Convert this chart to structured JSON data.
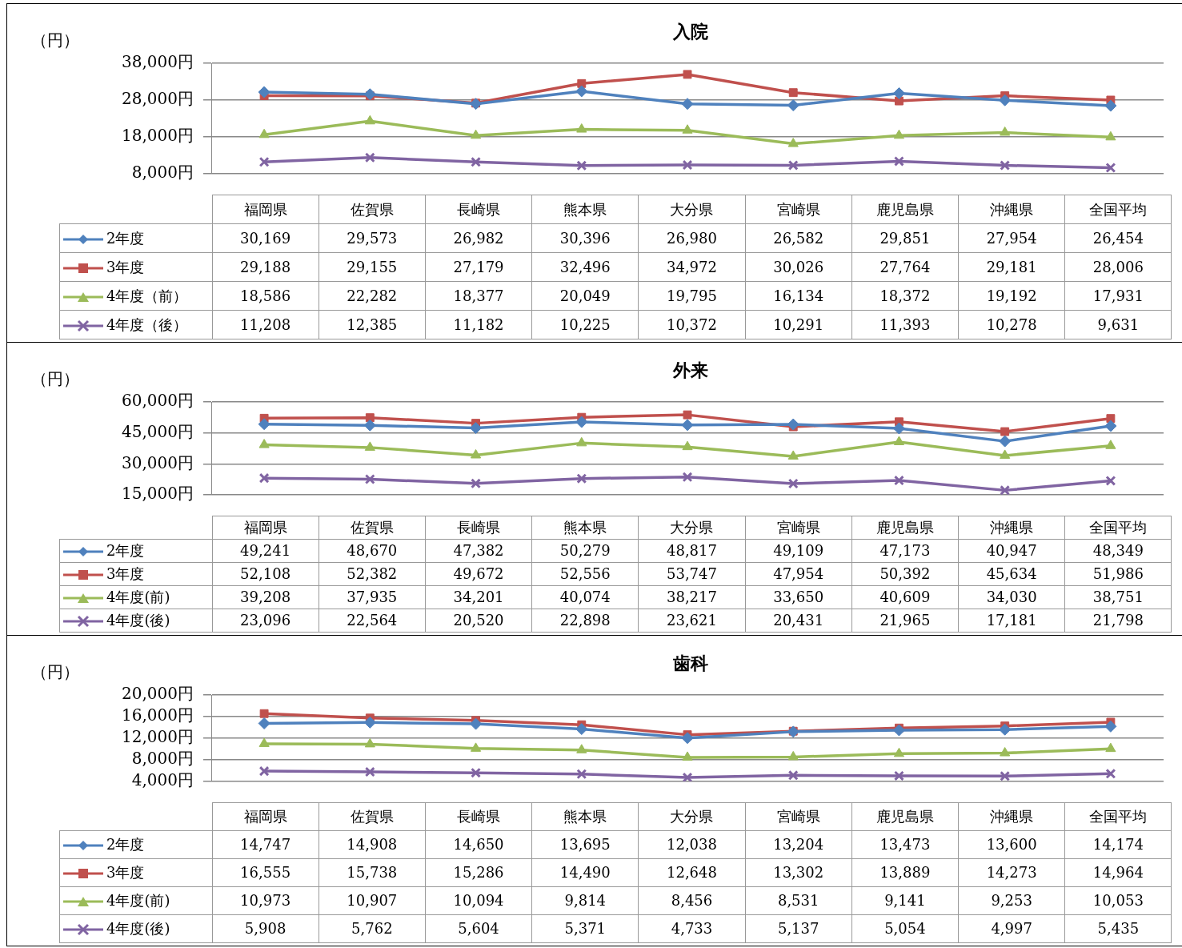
{
  "chart_data": [
    {
      "type": "line",
      "title": "入院",
      "ylabel": "（円）",
      "categories": [
        "福岡県",
        "佐賀県",
        "長崎県",
        "熊本県",
        "大分県",
        "宮崎県",
        "鹿児島県",
        "沖縄県",
        "全国平均"
      ],
      "series": [
        {
          "name": "2年度",
          "color": "#4f81bd",
          "marker": "diamond",
          "values": [
            30169,
            29573,
            26982,
            30396,
            26980,
            26582,
            29851,
            27954,
            26454
          ],
          "value_labels": [
            "30,169",
            "29,573",
            "26,982",
            "30,396",
            "26,980",
            "26,582",
            "29,851",
            "27,954",
            "26,454"
          ]
        },
        {
          "name": "3年度",
          "color": "#c0504d",
          "marker": "square",
          "values": [
            29188,
            29155,
            27179,
            32496,
            34972,
            30026,
            27764,
            29181,
            28006
          ],
          "value_labels": [
            "29,188",
            "29,155",
            "27,179",
            "32,496",
            "34,972",
            "30,026",
            "27,764",
            "29,181",
            "28,006"
          ]
        },
        {
          "name": "4年度（前）",
          "color": "#9bbb59",
          "marker": "triangle",
          "values": [
            18586,
            22282,
            18377,
            20049,
            19795,
            16134,
            18372,
            19192,
            17931
          ],
          "value_labels": [
            "18,586",
            "22,282",
            "18,377",
            "20,049",
            "19,795",
            "16,134",
            "18,372",
            "19,192",
            "17,931"
          ]
        },
        {
          "name": "4年度（後）",
          "color": "#8064a2",
          "marker": "cross",
          "values": [
            11208,
            12385,
            11182,
            10225,
            10372,
            10291,
            11393,
            10278,
            9631
          ],
          "value_labels": [
            "11,208",
            "12,385",
            "11,182",
            "10,225",
            "10,372",
            "10,291",
            "11,393",
            "10,278",
            "9,631"
          ]
        }
      ],
      "ylim": [
        8000,
        38000
      ],
      "yticks": [
        {
          "value": 8000,
          "label": "8,000円"
        },
        {
          "value": 18000,
          "label": "18,000円"
        },
        {
          "value": 28000,
          "label": "28,000円"
        },
        {
          "value": 38000,
          "label": "38,000円"
        }
      ],
      "grid": "y",
      "legend": "bottom",
      "line_style": "solid"
    },
    {
      "type": "line",
      "title": "外来",
      "ylabel": "（円）",
      "categories": [
        "福岡県",
        "佐賀県",
        "長崎県",
        "熊本県",
        "大分県",
        "宮崎県",
        "鹿児島県",
        "沖縄県",
        "全国平均"
      ],
      "series": [
        {
          "name": "2年度",
          "color": "#4f81bd",
          "marker": "diamond",
          "values": [
            49241,
            48670,
            47382,
            50279,
            48817,
            49109,
            47173,
            40947,
            48349
          ],
          "value_labels": [
            "49,241",
            "48,670",
            "47,382",
            "50,279",
            "48,817",
            "49,109",
            "47,173",
            "40,947",
            "48,349"
          ]
        },
        {
          "name": "3年度",
          "color": "#c0504d",
          "marker": "square",
          "values": [
            52108,
            52382,
            49672,
            52556,
            53747,
            47954,
            50392,
            45634,
            51986
          ],
          "value_labels": [
            "52,108",
            "52,382",
            "49,672",
            "52,556",
            "53,747",
            "47,954",
            "50,392",
            "45,634",
            "51,986"
          ]
        },
        {
          "name": "4年度(前)",
          "color": "#9bbb59",
          "marker": "triangle",
          "values": [
            39208,
            37935,
            34201,
            40074,
            38217,
            33650,
            40609,
            34030,
            38751
          ],
          "value_labels": [
            "39,208",
            "37,935",
            "34,201",
            "40,074",
            "38,217",
            "33,650",
            "40,609",
            "34,030",
            "38,751"
          ]
        },
        {
          "name": "4年度(後)",
          "color": "#8064a2",
          "marker": "cross",
          "values": [
            23096,
            22564,
            20520,
            22898,
            23621,
            20431,
            21965,
            17181,
            21798
          ],
          "value_labels": [
            "23,096",
            "22,564",
            "20,520",
            "22,898",
            "23,621",
            "20,431",
            "21,965",
            "17,181",
            "21,798"
          ]
        }
      ],
      "ylim": [
        15000,
        60000
      ],
      "yticks": [
        {
          "value": 15000,
          "label": "15,000円"
        },
        {
          "value": 30000,
          "label": "30,000円"
        },
        {
          "value": 45000,
          "label": "45,000円"
        },
        {
          "value": 60000,
          "label": "60,000円"
        }
      ],
      "grid": "y",
      "legend": "bottom",
      "line_style": "solid"
    },
    {
      "type": "line",
      "title": "歯科",
      "ylabel": "（円）",
      "categories": [
        "福岡県",
        "佐賀県",
        "長崎県",
        "熊本県",
        "大分県",
        "宮崎県",
        "鹿児島県",
        "沖縄県",
        "全国平均"
      ],
      "series": [
        {
          "name": "2年度",
          "color": "#4f81bd",
          "marker": "diamond",
          "values": [
            14747,
            14908,
            14650,
            13695,
            12038,
            13204,
            13473,
            13600,
            14174
          ],
          "value_labels": [
            "14,747",
            "14,908",
            "14,650",
            "13,695",
            "12,038",
            "13,204",
            "13,473",
            "13,600",
            "14,174"
          ]
        },
        {
          "name": "3年度",
          "color": "#c0504d",
          "marker": "square",
          "values": [
            16555,
            15738,
            15286,
            14490,
            12648,
            13302,
            13889,
            14273,
            14964
          ],
          "value_labels": [
            "16,555",
            "15,738",
            "15,286",
            "14,490",
            "12,648",
            "13,302",
            "13,889",
            "14,273",
            "14,964"
          ]
        },
        {
          "name": "4年度(前)",
          "color": "#9bbb59",
          "marker": "triangle",
          "values": [
            10973,
            10907,
            10094,
            9814,
            8456,
            8531,
            9141,
            9253,
            10053
          ],
          "value_labels": [
            "10,973",
            "10,907",
            "10,094",
            "9,814",
            "8,456",
            "8,531",
            "9,141",
            "9,253",
            "10,053"
          ]
        },
        {
          "name": "4年度(後)",
          "color": "#8064a2",
          "marker": "cross",
          "values": [
            5908,
            5762,
            5604,
            5371,
            4733,
            5137,
            5054,
            4997,
            5435
          ],
          "value_labels": [
            "5,908",
            "5,762",
            "5,604",
            "5,371",
            "4,733",
            "5,137",
            "5,054",
            "4,997",
            "5,435"
          ]
        }
      ],
      "ylim": [
        4000,
        20000
      ],
      "yticks": [
        {
          "value": 4000,
          "label": "4,000円"
        },
        {
          "value": 8000,
          "label": "8,000円"
        },
        {
          "value": 12000,
          "label": "12,000円"
        },
        {
          "value": 16000,
          "label": "16,000円"
        },
        {
          "value": 20000,
          "label": "20,000円"
        }
      ],
      "grid": "y",
      "legend": "bottom",
      "line_style": "solid"
    }
  ]
}
